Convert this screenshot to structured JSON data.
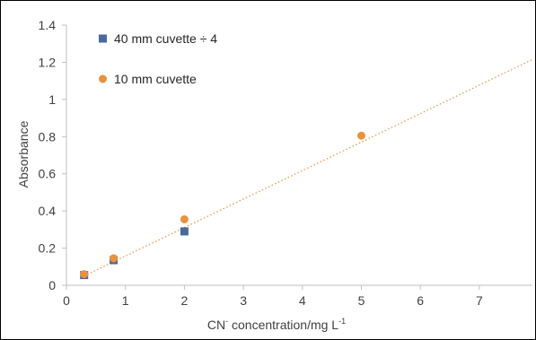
{
  "chart_data": {
    "type": "scatter",
    "title": "",
    "xlabel": {
      "pre": "CN",
      "sup1": "-",
      "mid": " concentration/mg L",
      "sup2": "-1"
    },
    "ylabel": "Absorbance",
    "xlim": [
      0,
      7.9
    ],
    "ylim": [
      0,
      1.4
    ],
    "x_ticks": [
      "0",
      "1",
      "2",
      "3",
      "4",
      "5",
      "6",
      "7"
    ],
    "y_ticks": [
      "0",
      "0.2",
      "0.4",
      "0.6",
      "0.8",
      "1",
      "1.2",
      "1.4"
    ],
    "grid": false,
    "legend_position": "top-left",
    "series": [
      {
        "name": "40 mm cuvette ÷ 4",
        "marker": "square",
        "color": "#4a6a9a",
        "points": [
          {
            "x": 0.3,
            "y": 0.055
          },
          {
            "x": 0.8,
            "y": 0.135
          },
          {
            "x": 2.0,
            "y": 0.29
          }
        ]
      },
      {
        "name": "10 mm cuvette",
        "marker": "circle",
        "color": "#e8913e",
        "points": [
          {
            "x": 0.3,
            "y": 0.06
          },
          {
            "x": 0.8,
            "y": 0.145
          },
          {
            "x": 2.0,
            "y": 0.355
          },
          {
            "x": 5.0,
            "y": 0.805
          }
        ]
      }
    ],
    "trendline": {
      "style": "dotted",
      "color": "#e8913e",
      "from": {
        "x": 0.3,
        "y": 0.05
      },
      "to": {
        "x": 7.9,
        "y": 1.215
      }
    }
  }
}
